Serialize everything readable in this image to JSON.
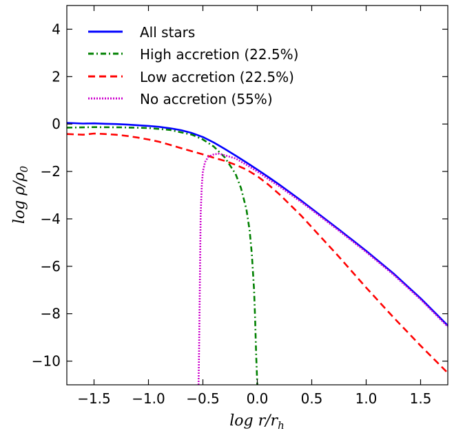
{
  "chart_data": {
    "type": "line",
    "xlabel": "log r/r_h",
    "ylabel": "log ρ/ρ_0",
    "xlim": [
      -1.75,
      1.75
    ],
    "ylim": [
      -11,
      5
    ],
    "x_ticks": [
      -1.5,
      -1.0,
      -0.5,
      0.0,
      0.5,
      1.0,
      1.5
    ],
    "x_tick_labels": [
      "−1.5",
      "−1.0",
      "−0.5",
      "0.0",
      "0.5",
      "1.0",
      "1.5"
    ],
    "y_ticks": [
      4,
      2,
      0,
      -2,
      -4,
      -6,
      -8,
      -10
    ],
    "y_tick_labels": [
      "4",
      "2",
      "0",
      "−2",
      "−4",
      "−6",
      "−8",
      "−10"
    ],
    "legend_position": "top-left",
    "ticks_direction": "in",
    "grid": false,
    "series": [
      {
        "name": "All stars",
        "color": "#0000ff",
        "style": "solid",
        "x": [
          -1.75,
          -1.6,
          -1.5,
          -1.4,
          -1.3,
          -1.2,
          -1.1,
          -1.0,
          -0.9,
          -0.8,
          -0.7,
          -0.6,
          -0.5,
          -0.4,
          -0.3,
          -0.2,
          -0.1,
          0.0,
          0.1,
          0.2,
          0.3,
          0.4,
          0.5,
          0.75,
          1.0,
          1.25,
          1.5,
          1.75
        ],
        "y": [
          0.05,
          0.02,
          0.03,
          0.01,
          0.0,
          -0.02,
          -0.05,
          -0.08,
          -0.12,
          -0.18,
          -0.26,
          -0.38,
          -0.55,
          -0.78,
          -1.05,
          -1.33,
          -1.62,
          -1.92,
          -2.23,
          -2.55,
          -2.88,
          -3.22,
          -3.57,
          -4.45,
          -5.35,
          -6.3,
          -7.35,
          -8.5
        ]
      },
      {
        "name": "High accretion (22.5%)",
        "color": "#008000",
        "style": "dashdot",
        "x": [
          -1.75,
          -1.5,
          -1.25,
          -1.0,
          -0.8,
          -0.6,
          -0.5,
          -0.4,
          -0.3,
          -0.2,
          -0.15,
          -0.1,
          -0.07,
          -0.05,
          -0.03,
          -0.02,
          -0.01,
          0.0
        ],
        "y": [
          -0.15,
          -0.13,
          -0.14,
          -0.17,
          -0.25,
          -0.45,
          -0.65,
          -0.95,
          -1.4,
          -2.1,
          -2.7,
          -3.6,
          -4.5,
          -5.5,
          -7.0,
          -8.2,
          -9.8,
          -11.0
        ]
      },
      {
        "name": "Low accretion (22.5%)",
        "color": "#ff0000",
        "style": "dashed",
        "x": [
          -1.75,
          -1.6,
          -1.5,
          -1.4,
          -1.3,
          -1.2,
          -1.1,
          -1.0,
          -0.9,
          -0.8,
          -0.7,
          -0.6,
          -0.5,
          -0.4,
          -0.3,
          -0.2,
          -0.1,
          0.0,
          0.1,
          0.2,
          0.3,
          0.4,
          0.5,
          0.75,
          1.0,
          1.25,
          1.5,
          1.75
        ],
        "y": [
          -0.42,
          -0.45,
          -0.4,
          -0.42,
          -0.45,
          -0.5,
          -0.57,
          -0.65,
          -0.75,
          -0.88,
          -1.02,
          -1.15,
          -1.28,
          -1.42,
          -1.55,
          -1.72,
          -1.92,
          -2.2,
          -2.55,
          -2.95,
          -3.4,
          -3.85,
          -4.35,
          -5.6,
          -6.9,
          -8.15,
          -9.35,
          -10.5
        ]
      },
      {
        "name": "No accretion (55%)",
        "color": "#cc00cc",
        "style": "dotted",
        "x": [
          -0.54,
          -0.535,
          -0.53,
          -0.525,
          -0.52,
          -0.51,
          -0.5,
          -0.48,
          -0.45,
          -0.4,
          -0.35,
          -0.3,
          -0.2,
          -0.1,
          0.0,
          0.1,
          0.2,
          0.3,
          0.4,
          0.5,
          0.75,
          1.0,
          1.25,
          1.5,
          1.75
        ],
        "y": [
          -11.0,
          -9.5,
          -7.5,
          -5.5,
          -3.8,
          -2.6,
          -2.0,
          -1.6,
          -1.38,
          -1.28,
          -1.25,
          -1.32,
          -1.45,
          -1.72,
          -2.0,
          -2.32,
          -2.62,
          -2.95,
          -3.28,
          -3.62,
          -4.5,
          -5.4,
          -6.35,
          -7.4,
          -8.55
        ]
      }
    ]
  }
}
